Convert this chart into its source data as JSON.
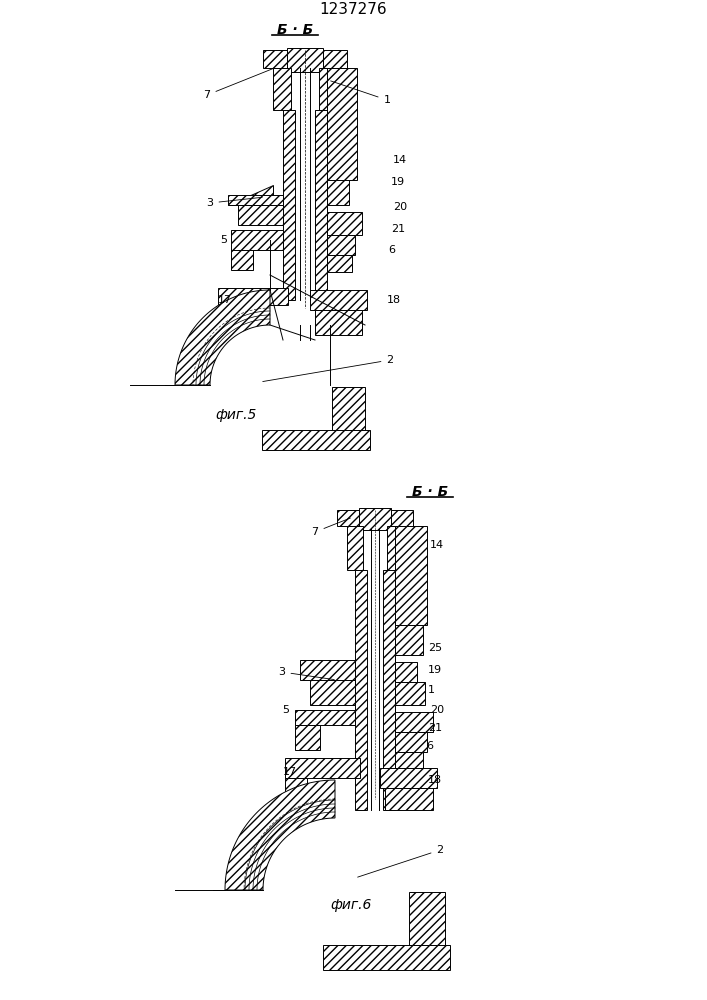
{
  "title": "1237276",
  "fig5_label": "фиг.5",
  "fig6_label": "фиг.6",
  "section_label": "Б · Б",
  "fig_width": 7.07,
  "fig_height": 10.0,
  "bg": "#ffffff"
}
